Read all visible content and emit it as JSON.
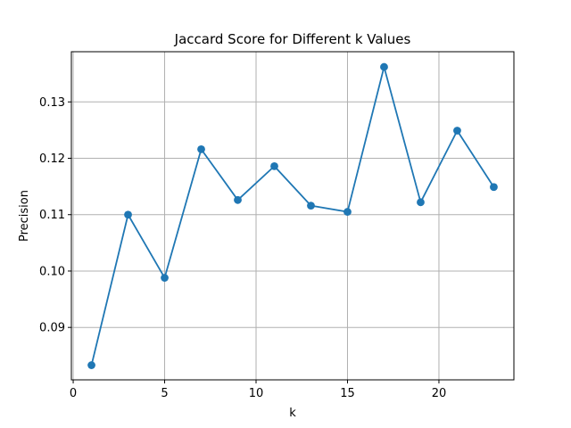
{
  "chart_data": {
    "type": "line",
    "title": "Jaccard Score for Different k Values",
    "xlabel": "k",
    "ylabel": "Precision",
    "xlim": [
      -0.1,
      24.1
    ],
    "ylim": [
      0.0807,
      0.1389
    ],
    "grid": true,
    "x": [
      1,
      3,
      5,
      7,
      9,
      11,
      13,
      15,
      17,
      19,
      21,
      23
    ],
    "series": [
      {
        "values": [
          0.0833,
          0.11,
          0.0988,
          0.1216,
          0.1126,
          0.1186,
          0.1116,
          0.1105,
          0.1362,
          0.1122,
          0.1249,
          0.1149
        ],
        "color": "#1f77b4",
        "marker": "circle"
      }
    ],
    "x_ticks": [
      0,
      5,
      10,
      15,
      20
    ],
    "x_tick_labels": [
      "0",
      "5",
      "10",
      "15",
      "20"
    ],
    "y_ticks": [
      0.09,
      0.1,
      0.11,
      0.12,
      0.13
    ],
    "y_tick_labels": [
      "0.09",
      "0.10",
      "0.11",
      "0.12",
      "0.13"
    ]
  }
}
